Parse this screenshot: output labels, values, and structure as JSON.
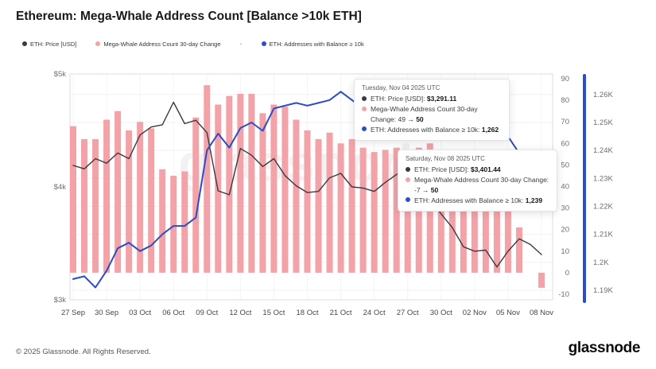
{
  "title": "Ethereum: Mega-Whale Address Count [Balance >10k ETH]",
  "watermark": "glassnode",
  "colors": {
    "price": "#3b3841",
    "bars": "#f3a2a8",
    "addresses": "#2c4dc4",
    "background": "#ffffff"
  },
  "legend": {
    "items": [
      {
        "type": "item",
        "series": "price",
        "label": "ETH: Price [USD]"
      },
      {
        "type": "item",
        "series": "bars",
        "label": "Mega-Whale Address Count 30-day Change"
      },
      {
        "type": "dash",
        "label": "-"
      },
      {
        "type": "item",
        "series": "addresses",
        "label": "ETH: Addresses with Balance ≥ 10k"
      }
    ]
  },
  "tooltips": [
    {
      "date": "Tuesday, Nov 04 2025 UTC",
      "rows": [
        {
          "series": "price",
          "label": "ETH: Price [USD]:",
          "value": "$3,291.11"
        },
        {
          "series": "bars",
          "label": "Mega-Whale Address Count 30-day Change: 49",
          "value": "→ 50"
        },
        {
          "series": "addresses",
          "label": "ETH: Addresses with Balance ≥ 10k:",
          "value": "1,262"
        }
      ]
    },
    {
      "date": "Saturday, Nov 08 2025 UTC",
      "rows": [
        {
          "series": "price",
          "label": "ETH: Price [USD]:",
          "value": "$3,401.44"
        },
        {
          "series": "bars",
          "label": "Mega-Whale Address Count 30-day Change: -7",
          "value": "→ 50"
        },
        {
          "series": "addresses",
          "label": "ETH: Addresses with Balance ≥ 10k:",
          "value": "1,239"
        }
      ]
    }
  ],
  "footer": {
    "copyright": "© 2025 Glassnode. All Rights Reserved.",
    "logo": "glassnode"
  },
  "chart_data": {
    "type": "mixed",
    "x_tick_every": 3,
    "dates": [
      "27 Sep",
      "28 Sep",
      "29 Sep",
      "30 Sep",
      "01 Oct",
      "02 Oct",
      "03 Oct",
      "04 Oct",
      "05 Oct",
      "06 Oct",
      "07 Oct",
      "08 Oct",
      "09 Oct",
      "10 Oct",
      "11 Oct",
      "12 Oct",
      "13 Oct",
      "14 Oct",
      "15 Oct",
      "16 Oct",
      "17 Oct",
      "18 Oct",
      "19 Oct",
      "20 Oct",
      "21 Oct",
      "22 Oct",
      "23 Oct",
      "24 Oct",
      "25 Oct",
      "26 Oct",
      "27 Oct",
      "28 Oct",
      "29 Oct",
      "30 Oct",
      "31 Oct",
      "01 Nov",
      "02 Nov",
      "03 Nov",
      "04 Nov",
      "05 Nov",
      "06 Nov",
      "07 Nov",
      "08 Nov"
    ],
    "series": [
      {
        "key": "price",
        "name": "ETH: Price [USD]",
        "type": "line",
        "axis": "left",
        "values": [
          4190,
          4160,
          4250,
          4210,
          4300,
          4250,
          4460,
          4530,
          4550,
          4750,
          4560,
          4590,
          4480,
          3965,
          3930,
          4340,
          4280,
          4180,
          4250,
          4100,
          4010,
          3950,
          3960,
          4080,
          4120,
          4000,
          3990,
          3960,
          4040,
          4110,
          4150,
          4080,
          3900,
          3760,
          3640,
          3470,
          3430,
          3440,
          3291,
          3430,
          3540,
          3490,
          3401
        ]
      },
      {
        "key": "bars",
        "name": "Mega-Whale Address Count 30-day Change",
        "type": "bar",
        "axis": "right_inner",
        "values": [
          68,
          62,
          62,
          71,
          75,
          66,
          70,
          67,
          48,
          45,
          47,
          72,
          87,
          78,
          82,
          83,
          83,
          74,
          78,
          77,
          71,
          66,
          62,
          65,
          60,
          62,
          58,
          56,
          57,
          58,
          56,
          58,
          60,
          55,
          52,
          50,
          48,
          45,
          49,
          42,
          21,
          0,
          -7
        ]
      },
      {
        "key": "addresses",
        "name": "ETH: Addresses with Balance ≥ 10k",
        "type": "line",
        "axis": "right_outer",
        "values": [
          1194,
          1195,
          1191,
          1197,
          1205,
          1207,
          1204,
          1206,
          1210,
          1213,
          1213,
          1216,
          1240,
          1246,
          1241,
          1248,
          1250,
          1247,
          1255,
          1256,
          1257,
          1256,
          1257,
          1258,
          1261,
          1258,
          1255,
          1256,
          1257,
          1258,
          1258,
          1259,
          1259,
          1260,
          1260,
          1261,
          1261,
          1261,
          1262,
          1245,
          1239,
          1238,
          1239
        ]
      }
    ],
    "axes": {
      "left": {
        "labels": [
          "$5k",
          "$4k",
          "$3k"
        ],
        "values": [
          5000,
          4000,
          3000
        ],
        "range": [
          3000,
          5000
        ]
      },
      "right_inner": {
        "labels": [
          "90",
          "80",
          "70",
          "60",
          "50",
          "40",
          "30",
          "20",
          "10",
          "0",
          "-10"
        ],
        "values": [
          90,
          80,
          70,
          60,
          50,
          40,
          30,
          20,
          10,
          0,
          -10
        ],
        "range": [
          -10,
          90
        ]
      },
      "right_outer": {
        "labels": [
          "1.26K",
          "1.25K",
          "1.24K",
          "1.23K",
          "1.22K",
          "1.21K",
          "1.2K",
          "1.19K"
        ],
        "values": [
          1260,
          1250,
          1240,
          1230,
          1220,
          1210,
          1200,
          1190
        ],
        "range": [
          1190,
          1260
        ]
      }
    },
    "grid": true,
    "legend_position": "top-left"
  }
}
